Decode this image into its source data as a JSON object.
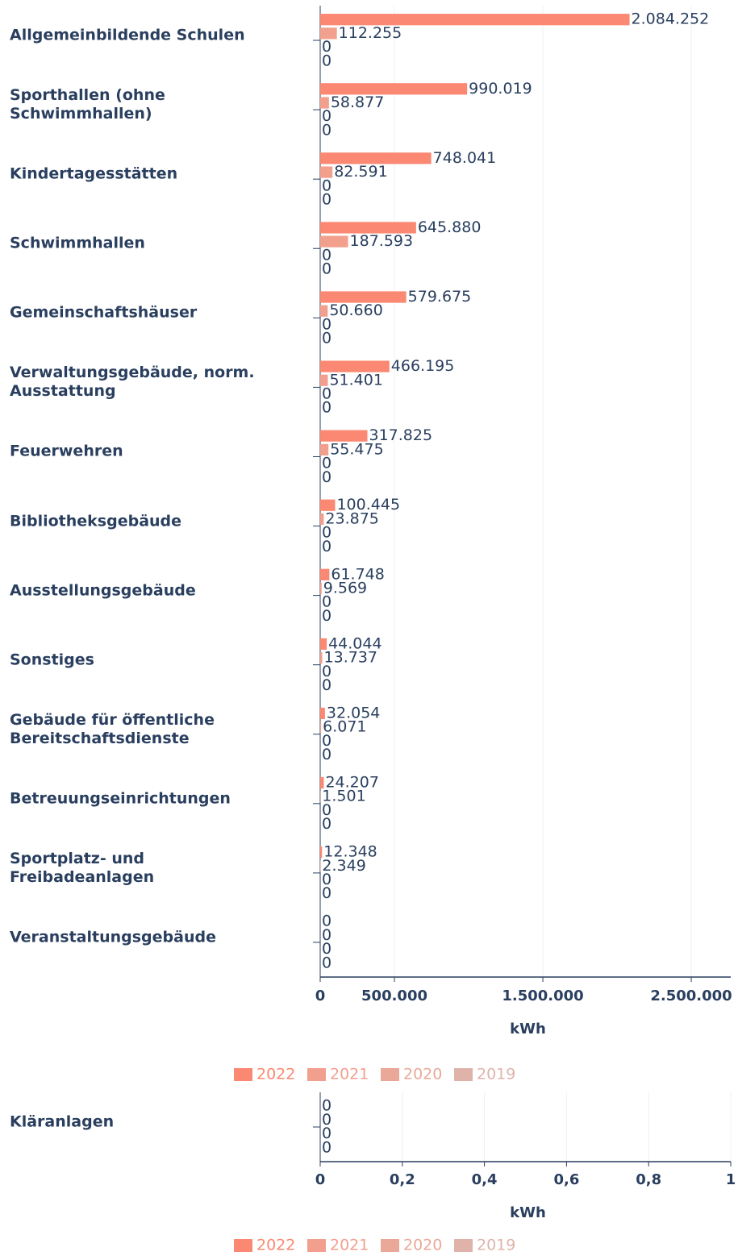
{
  "chart_data": [
    {
      "type": "bar",
      "orientation": "horizontal",
      "categories": [
        "Allgemeinbildende Schulen",
        "Sporthallen (ohne Schwimmhallen)",
        "Kindertagesstätten",
        "Schwimmhallen",
        "Gemeinschaftshäuser",
        "Verwaltungsgebäude, norm. Ausstattung",
        "Feuerwehren",
        "Bibliotheksgebäude",
        "Ausstellungsgebäude",
        "Sonstiges",
        "Gebäude für öffentliche Bereitschaftsdienste",
        "Betreuungseinrichtungen",
        "Sportplatz- und Freibadeanlagen",
        "Veranstaltungsgebäude"
      ],
      "series": [
        {
          "name": "2022",
          "color": "#fa8872",
          "values": [
            2084252,
            990019,
            748041,
            645880,
            579675,
            466195,
            317825,
            100445,
            61748,
            44044,
            32054,
            24207,
            12348,
            0
          ],
          "value_labels": [
            "2.084.252",
            "990.019",
            "748.041",
            "645.880",
            "579.675",
            "466.195",
            "317.825",
            "100.445",
            "61.748",
            "44.044",
            "32.054",
            "24.207",
            "12.348",
            "0"
          ]
        },
        {
          "name": "2021",
          "color": "#f29f8e",
          "values": [
            112255,
            58877,
            82591,
            187593,
            50660,
            51401,
            55475,
            23875,
            9569,
            13737,
            6071,
            1501,
            2349,
            0
          ],
          "value_labels": [
            "112.255",
            "58.877",
            "82.591",
            "187.593",
            "50.660",
            "51.401",
            "55.475",
            "23.875",
            "9.569",
            "13.737",
            "6.071",
            "1.501",
            "2.349",
            "0"
          ]
        },
        {
          "name": "2020",
          "color": "#eaa898",
          "values": [
            0,
            0,
            0,
            0,
            0,
            0,
            0,
            0,
            0,
            0,
            0,
            0,
            0,
            0
          ]
        },
        {
          "name": "2019",
          "color": "#dfb3aa",
          "values": [
            0,
            0,
            0,
            0,
            0,
            0,
            0,
            0,
            0,
            0,
            0,
            0,
            0,
            0
          ]
        }
      ],
      "xlim": [
        0,
        2766000
      ],
      "xticks": [
        0,
        {
          "value": 500000,
          "label": "500.000"
        },
        {
          "value": 1500000,
          "label": "1.500.000"
        },
        {
          "value": 2500000,
          "label": "2.500.000"
        }
      ],
      "xlabel": "kWh",
      "grid": true,
      "legend": "bottom"
    },
    {
      "type": "bar",
      "orientation": "horizontal",
      "categories": [
        "Kläranlagen"
      ],
      "series": [
        {
          "name": "2022",
          "color": "#fa8872",
          "values": [
            0
          ]
        },
        {
          "name": "2021",
          "color": "#f29f8e",
          "values": [
            0
          ]
        },
        {
          "name": "2020",
          "color": "#eaa898",
          "values": [
            0
          ]
        },
        {
          "name": "2019",
          "color": "#dfb3aa",
          "values": [
            0
          ]
        }
      ],
      "xlim": [
        0,
        1
      ],
      "xticks": [
        0,
        {
          "value": 0.2,
          "label": "0,2"
        },
        {
          "value": 0.4,
          "label": "0,4"
        },
        {
          "value": 0.6,
          "label": "0,6"
        },
        {
          "value": 0.8,
          "label": "0,8"
        },
        1
      ],
      "xlabel": "kWh",
      "grid": true,
      "legend": "bottom"
    }
  ]
}
